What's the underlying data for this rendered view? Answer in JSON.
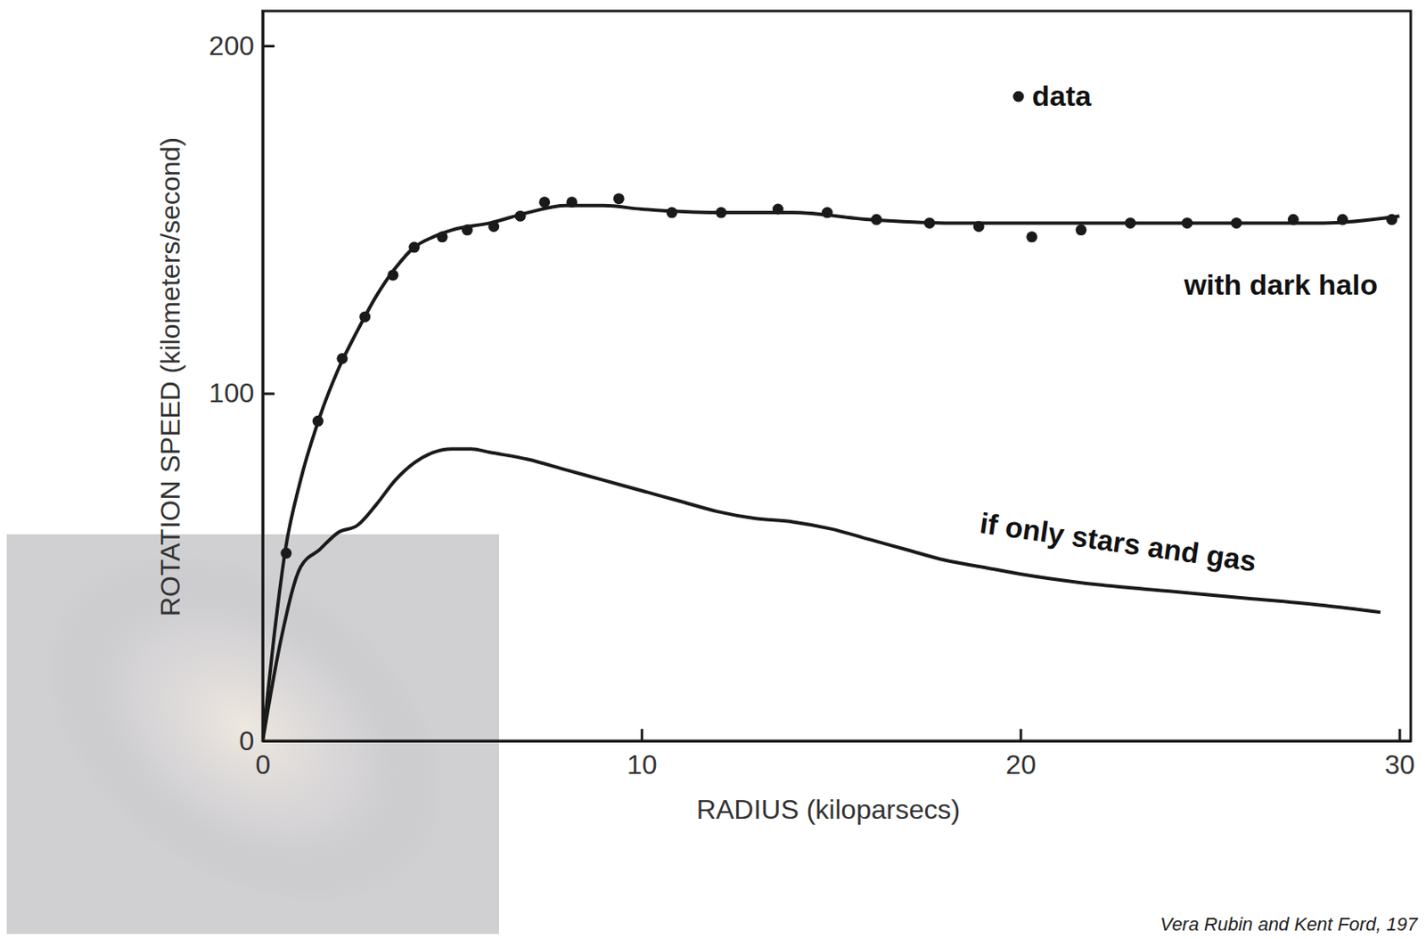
{
  "chart_data": {
    "type": "line",
    "x_label": "RADIUS (kiloparsecs)",
    "y_label": "ROTATION SPEED (kilometers/second)",
    "source": "Vera Rubin and Kent Ford, 197",
    "xlim": [
      0,
      30.3
    ],
    "ylim": [
      0,
      210
    ],
    "xticks": [
      0,
      10,
      20,
      30
    ],
    "yticks": [
      0,
      100,
      200
    ],
    "color": "#1a1a1a",
    "series": [
      {
        "name": "data",
        "type": "scatter",
        "marker": "circle",
        "color": "#1a1a1a",
        "x": [
          0.62,
          1.46,
          2.1,
          2.7,
          3.44,
          4.0,
          4.74,
          5.4,
          6.1,
          6.8,
          7.44,
          8.16,
          9.4,
          10.8,
          12.1,
          13.6,
          14.9,
          16.2,
          17.6,
          18.9,
          20.3,
          21.6,
          22.9,
          24.4,
          25.7,
          27.2,
          28.5,
          29.8
        ],
        "values": [
          54,
          92,
          110,
          122,
          134,
          142,
          145,
          147,
          148,
          151,
          155,
          155,
          156,
          152,
          152,
          153,
          152,
          150,
          149,
          148,
          145,
          147,
          149,
          149,
          149,
          150,
          150,
          150
        ]
      },
      {
        "name": "with dark halo",
        "type": "line",
        "line_style": "solid",
        "color": "#1a1a1a",
        "x": [
          0,
          0.3,
          0.6,
          1,
          1.5,
          2,
          2.5,
          3,
          3.5,
          4,
          4.5,
          5,
          6,
          7,
          8,
          9,
          10,
          12,
          14,
          16,
          18,
          20,
          22,
          24,
          26,
          28,
          30
        ],
        "values": [
          0,
          30,
          55,
          75,
          93,
          107,
          118,
          128,
          136,
          142,
          145,
          147,
          149,
          152,
          154,
          154,
          153,
          152,
          152,
          150,
          149,
          149,
          149,
          149,
          149,
          149,
          151
        ]
      },
      {
        "name": "if only stars and gas",
        "type": "line",
        "line_style": "solid",
        "color": "#1a1a1a",
        "x": [
          0,
          0.5,
          1,
          1.5,
          2,
          2.5,
          3,
          3.5,
          4,
          4.5,
          5,
          5.5,
          6,
          7,
          8,
          9,
          10,
          11,
          12,
          13,
          14,
          15,
          16,
          17,
          18,
          19,
          20,
          22,
          24,
          26,
          28,
          29.5
        ],
        "values": [
          0,
          30,
          50,
          55,
          60,
          62,
          68,
          75,
          80,
          83,
          84,
          84,
          83,
          81,
          78,
          75,
          72,
          69,
          66,
          64,
          63,
          61,
          58,
          55,
          52,
          50,
          48,
          45,
          43,
          41,
          39,
          37
        ]
      }
    ]
  }
}
